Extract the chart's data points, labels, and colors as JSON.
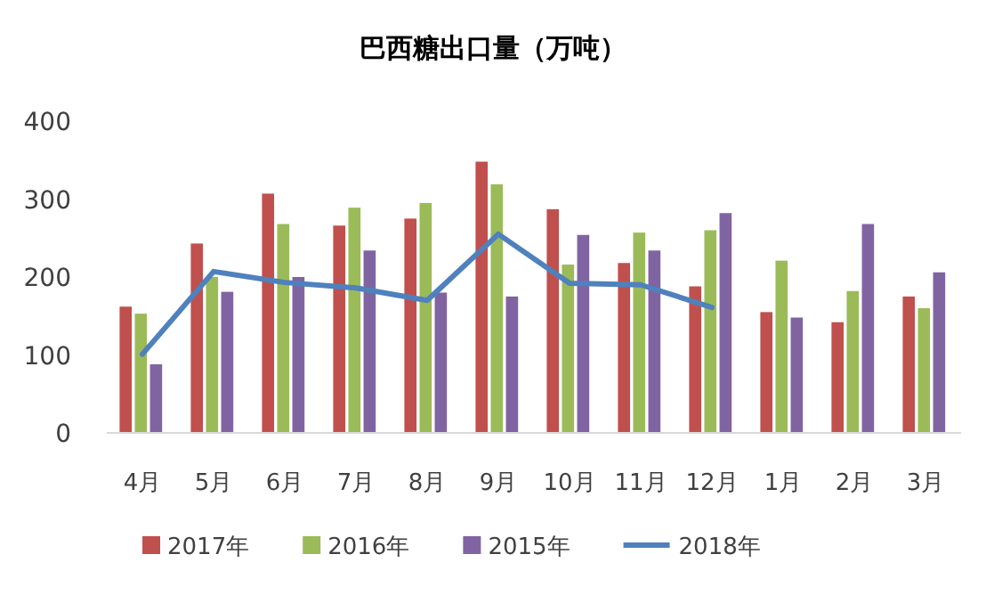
{
  "chart_data": {
    "type": "bar",
    "title": "巴西糖出口量（万吨）",
    "categories": [
      "4月",
      "5月",
      "6月",
      "7月",
      "8月",
      "9月",
      "10月",
      "11月",
      "12月",
      "1月",
      "2月",
      "3月"
    ],
    "series": [
      {
        "name": "2017年",
        "color": "#c0504d",
        "values": [
          162,
          243,
          307,
          266,
          275,
          348,
          287,
          218,
          188,
          155,
          142,
          175
        ]
      },
      {
        "name": "2016年",
        "color": "#9bbb59",
        "values": [
          153,
          200,
          268,
          289,
          295,
          319,
          216,
          257,
          260,
          221,
          182,
          160
        ]
      },
      {
        "name": "2015年",
        "color": "#8064a2",
        "values": [
          88,
          181,
          200,
          234,
          180,
          175,
          254,
          234,
          282,
          148,
          268,
          206
        ]
      },
      {
        "name": "2018年",
        "type": "line",
        "color": "#4f81bd",
        "values": [
          101,
          207,
          193,
          186,
          170,
          255,
          192,
          190,
          161,
          null,
          null,
          null
        ]
      }
    ],
    "ylim": [
      0,
      400
    ],
    "yticks": [
      0,
      100,
      200,
      300,
      400
    ],
    "grid": false,
    "legend": "bottom",
    "marker": "none"
  }
}
